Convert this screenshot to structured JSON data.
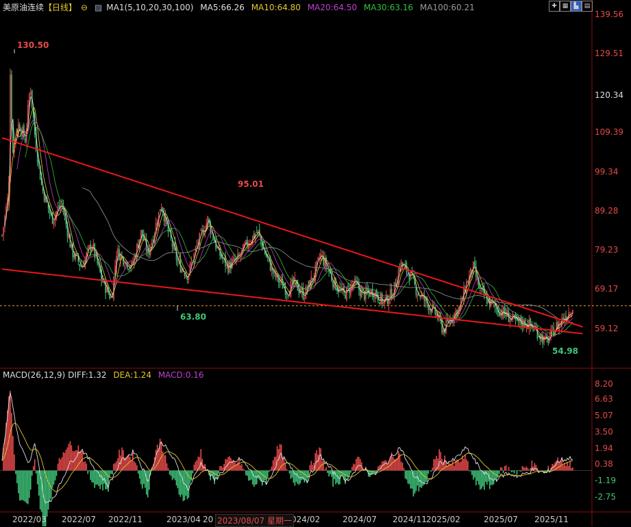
{
  "header": {
    "symbol": "美原油连续",
    "period": "【日线】",
    "ma_label": "MA1(5,10,20,30,100)",
    "ma5": "MA5:66.26",
    "ma10": "MA10:64.80",
    "ma20": "MA20:64.50",
    "ma30": "MA30:63.16",
    "ma100": "MA100:60.21"
  },
  "macd_header": {
    "label": "MACD(26,12,9)",
    "diff": "DIFF:1.32",
    "dea": "DEA:1.24",
    "macd": "MACD:0.16"
  },
  "toolbar": [
    "zoom-in-icon",
    "grid-icon",
    "chart-icon",
    "layout-icon"
  ],
  "colors": {
    "up": "#e84a4a",
    "down": "#3fc67a",
    "ma5": "#e0e0e0",
    "ma10": "#e6c830",
    "ma20": "#c040d0",
    "ma30": "#30c040",
    "ma100": "#9a9a9a",
    "trend": "#e81818"
  },
  "crosshair_date": "2023/08/07 星期一",
  "chart_data": {
    "type": "candlestick",
    "price_axis": {
      "ticks": [
        "139.56",
        "129.51",
        "120.34",
        "109.39",
        "99.34",
        "89.28",
        "79.23",
        "69.17",
        "59.12"
      ],
      "highlight": "120.34",
      "ylim": [
        52,
        140
      ]
    },
    "macd_axis": {
      "ticks": [
        "8.20",
        "6.63",
        "5.07",
        "3.50",
        "1.94",
        "0.38",
        "-1.19",
        "-2.75"
      ],
      "ylim": [
        -4,
        9
      ]
    },
    "x_ticks": [
      "2022/03",
      "2022/07",
      "2022/11",
      "2023/04",
      "20",
      "024/02",
      "2024/07",
      "2024/11",
      "2025/02",
      "2025/07",
      "2025/11"
    ],
    "annotations": [
      {
        "label": "130.50",
        "value": 130.5,
        "color": "up"
      },
      {
        "label": "95.01",
        "value": 95.01,
        "color": "up"
      },
      {
        "label": "63.80",
        "value": 63.8,
        "color": "down"
      },
      {
        "label": "54.98",
        "value": 54.98,
        "color": "down"
      }
    ],
    "last_price": 66.3,
    "price_path": [
      [
        0,
        84
      ],
      [
        0.02,
        95
      ],
      [
        0.025,
        128
      ],
      [
        0.03,
        105
      ],
      [
        0.05,
        112
      ],
      [
        0.07,
        108
      ],
      [
        0.085,
        122
      ],
      [
        0.1,
        108
      ],
      [
        0.12,
        96
      ],
      [
        0.15,
        88
      ],
      [
        0.18,
        92
      ],
      [
        0.21,
        80
      ],
      [
        0.24,
        76
      ],
      [
        0.27,
        82
      ],
      [
        0.3,
        73
      ],
      [
        0.33,
        68
      ],
      [
        0.345,
        80
      ],
      [
        0.39,
        76
      ],
      [
        0.42,
        85
      ],
      [
        0.44,
        79
      ],
      [
        0.48,
        92
      ],
      [
        0.5,
        85
      ],
      [
        0.53,
        77
      ],
      [
        0.56,
        74
      ],
      [
        0.59,
        82
      ],
      [
        0.62,
        88
      ],
      [
        0.65,
        80
      ],
      [
        0.68,
        76
      ],
      [
        0.71,
        78
      ],
      [
        0.74,
        82
      ],
      [
        0.77,
        85
      ],
      [
        0.79,
        80
      ],
      [
        0.82,
        74
      ],
      [
        0.86,
        70
      ],
      [
        0.88,
        72
      ],
      [
        0.91,
        69
      ],
      [
        0.94,
        74
      ],
      [
        0.96,
        79
      ],
      [
        0.98,
        76
      ],
      [
        1.0,
        72
      ],
      [
        1.03,
        69
      ],
      [
        1.06,
        72
      ],
      [
        1.09,
        69
      ],
      [
        1.12,
        70
      ],
      [
        1.15,
        67
      ],
      [
        1.18,
        70
      ],
      [
        1.2,
        77
      ],
      [
        1.23,
        74
      ],
      [
        1.25,
        70
      ],
      [
        1.28,
        67
      ],
      [
        1.31,
        64
      ],
      [
        1.33,
        60
      ],
      [
        1.35,
        63
      ],
      [
        1.38,
        66
      ],
      [
        1.4,
        72
      ],
      [
        1.42,
        76
      ],
      [
        1.44,
        70
      ],
      [
        1.47,
        67
      ],
      [
        1.5,
        65
      ],
      [
        1.52,
        64
      ],
      [
        1.55,
        62
      ],
      [
        1.58,
        62
      ],
      [
        1.61,
        60
      ],
      [
        1.64,
        57
      ],
      [
        1.66,
        60
      ],
      [
        1.68,
        62
      ],
      [
        1.7,
        64
      ],
      [
        1.72,
        66
      ]
    ],
    "macd_path": [
      [
        0,
        1.0
      ],
      [
        0.025,
        8.0
      ],
      [
        0.05,
        3.0
      ],
      [
        0.08,
        0.5
      ],
      [
        0.1,
        2.8
      ],
      [
        0.13,
        -3.5
      ],
      [
        0.16,
        -2.5
      ],
      [
        0.2,
        0.5
      ],
      [
        0.24,
        2.2
      ],
      [
        0.28,
        0.2
      ],
      [
        0.32,
        -1.5
      ],
      [
        0.36,
        1.0
      ],
      [
        0.4,
        2.0
      ],
      [
        0.44,
        -1.0
      ],
      [
        0.48,
        3.0
      ],
      [
        0.52,
        1.0
      ],
      [
        0.56,
        -2.0
      ],
      [
        0.6,
        0.8
      ],
      [
        0.64,
        -1.0
      ],
      [
        0.68,
        0.5
      ],
      [
        0.72,
        1.2
      ],
      [
        0.76,
        -0.5
      ],
      [
        0.8,
        -1.3
      ],
      [
        0.84,
        1.6
      ],
      [
        0.88,
        -0.2
      ],
      [
        0.92,
        -1.0
      ],
      [
        0.96,
        1.5
      ],
      [
        1.0,
        -0.3
      ],
      [
        1.04,
        -1.0
      ],
      [
        1.08,
        0.5
      ],
      [
        1.12,
        -0.5
      ],
      [
        1.16,
        0.8
      ],
      [
        1.2,
        2.4
      ],
      [
        1.24,
        -0.5
      ],
      [
        1.28,
        -1.5
      ],
      [
        1.32,
        0.8
      ],
      [
        1.36,
        1.0
      ],
      [
        1.4,
        2.3
      ],
      [
        1.44,
        0.2
      ],
      [
        1.48,
        -1.0
      ],
      [
        1.52,
        -0.3
      ],
      [
        1.56,
        -0.6
      ],
      [
        1.6,
        0.1
      ],
      [
        1.64,
        -0.3
      ],
      [
        1.68,
        1.0
      ],
      [
        1.72,
        1.32
      ]
    ]
  }
}
